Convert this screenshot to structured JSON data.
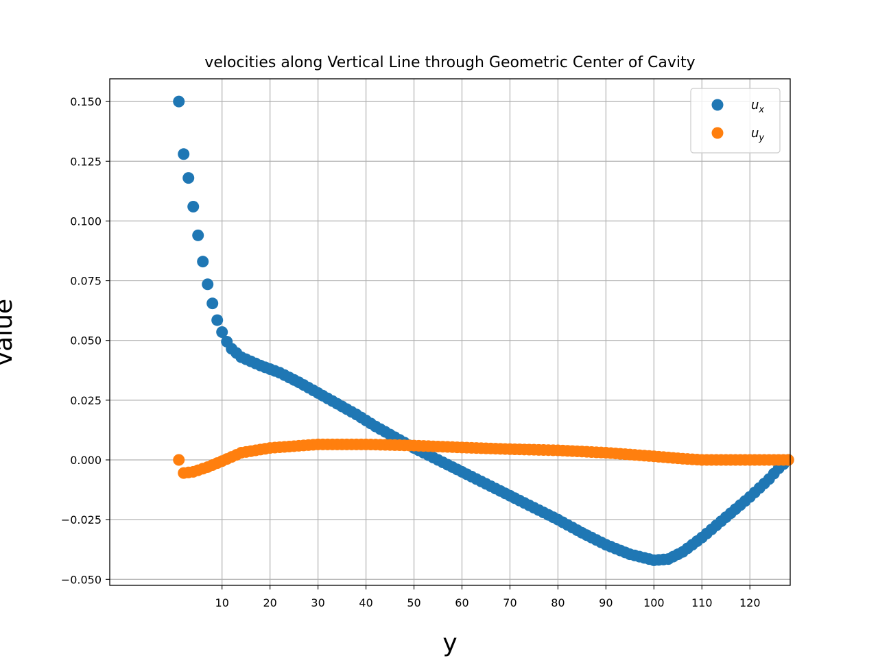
{
  "chart_data": {
    "type": "scatter",
    "title": "velocities along Vertical Line through Geometric Center of Cavity",
    "xlabel": "y",
    "ylabel": "value",
    "xlim": [
      -13.4,
      128.4
    ],
    "ylim": [
      -0.0525,
      0.1595
    ],
    "xticks": [
      10,
      20,
      30,
      40,
      50,
      60,
      70,
      80,
      90,
      100,
      110,
      120
    ],
    "xtick_labels": [
      "10",
      "20",
      "30",
      "40",
      "50",
      "60",
      "70",
      "80",
      "90",
      "100",
      "110",
      "120"
    ],
    "yticks": [
      -0.05,
      -0.025,
      0,
      0.025,
      0.05,
      0.075,
      0.1,
      0.125,
      0.15
    ],
    "ytick_labels": [
      "−0.050",
      "−0.025",
      "0.000",
      "0.025",
      "0.050",
      "0.075",
      "0.100",
      "0.125",
      "0.150"
    ],
    "grid": true,
    "legend_position": "top-right",
    "x_range": [
      1,
      128
    ],
    "series": [
      {
        "name": "u_x",
        "legend_base": "u",
        "legend_sub": "x",
        "color": "#1f77b4",
        "knots": [
          [
            1,
            0.15
          ],
          [
            2,
            0.128
          ],
          [
            3,
            0.118
          ],
          [
            4,
            0.106
          ],
          [
            5,
            0.094
          ],
          [
            6,
            0.083
          ],
          [
            7,
            0.0735
          ],
          [
            8,
            0.0655
          ],
          [
            9,
            0.0585
          ],
          [
            10,
            0.0535
          ],
          [
            11,
            0.0495
          ],
          [
            12,
            0.0465
          ],
          [
            14,
            0.043
          ],
          [
            18,
            0.0395
          ],
          [
            22,
            0.0365
          ],
          [
            26,
            0.0325
          ],
          [
            30,
            0.028
          ],
          [
            34,
            0.0235
          ],
          [
            38,
            0.019
          ],
          [
            42,
            0.014
          ],
          [
            46,
            0.0095
          ],
          [
            50,
            0.005
          ],
          [
            55,
            0.0
          ],
          [
            60,
            -0.005
          ],
          [
            65,
            -0.01
          ],
          [
            70,
            -0.015
          ],
          [
            75,
            -0.02
          ],
          [
            80,
            -0.025
          ],
          [
            85,
            -0.0305
          ],
          [
            90,
            -0.0355
          ],
          [
            95,
            -0.0395
          ],
          [
            100,
            -0.042
          ],
          [
            103,
            -0.0415
          ],
          [
            106,
            -0.0385
          ],
          [
            110,
            -0.0325
          ],
          [
            115,
            -0.024
          ],
          [
            120,
            -0.0155
          ],
          [
            124,
            -0.008
          ],
          [
            126,
            -0.0035
          ],
          [
            128,
            0.0
          ]
        ]
      },
      {
        "name": "u_y",
        "legend_base": "u",
        "legend_sub": "y",
        "color": "#ff7f0e",
        "knots": [
          [
            1,
            0.0
          ],
          [
            2,
            -0.0055
          ],
          [
            4,
            -0.005
          ],
          [
            7,
            -0.003
          ],
          [
            10,
            -0.0005
          ],
          [
            14,
            0.003
          ],
          [
            20,
            0.005
          ],
          [
            30,
            0.0065
          ],
          [
            40,
            0.0065
          ],
          [
            50,
            0.006
          ],
          [
            60,
            0.0052
          ],
          [
            70,
            0.0045
          ],
          [
            80,
            0.004
          ],
          [
            90,
            0.003
          ],
          [
            100,
            0.0015
          ],
          [
            106,
            0.0005
          ],
          [
            110,
            0.0
          ],
          [
            128,
            0.0
          ]
        ]
      }
    ]
  }
}
